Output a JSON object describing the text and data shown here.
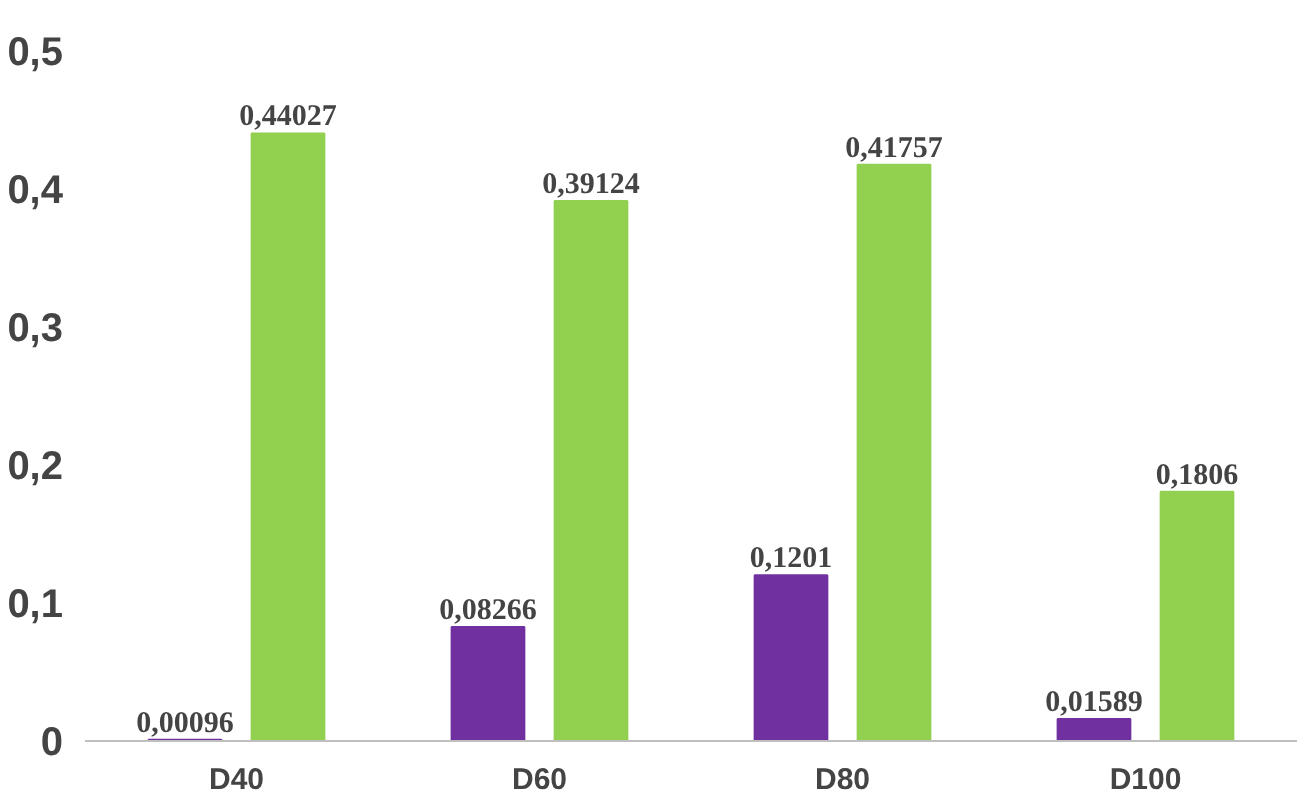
{
  "chart_data": {
    "type": "bar",
    "categories": [
      "D40",
      "D60",
      "D80",
      "D100"
    ],
    "series": [
      {
        "color": "#7030a0",
        "values": [
          0.00096,
          0.08266,
          0.1201,
          0.01589
        ],
        "value_labels": [
          "0,00096",
          "0,08266",
          "0,1201",
          "0,01589"
        ]
      },
      {
        "color": "#92d050",
        "values": [
          0.44027,
          0.39124,
          0.41757,
          0.1806
        ],
        "value_labels": [
          "0,44027",
          "0,39124",
          "0,41757",
          "0,1806"
        ]
      }
    ],
    "ylim": [
      0,
      0.5
    ],
    "yticks": [
      0,
      {
        "value": 0.1,
        "label": "0,1"
      },
      {
        "value": 0.2,
        "label": "0,2"
      },
      {
        "value": 0.3,
        "label": "0,3"
      },
      {
        "value": 0.4,
        "label": "0,4"
      },
      {
        "value": 0.5,
        "label": "0,5"
      }
    ],
    "grid": false
  }
}
